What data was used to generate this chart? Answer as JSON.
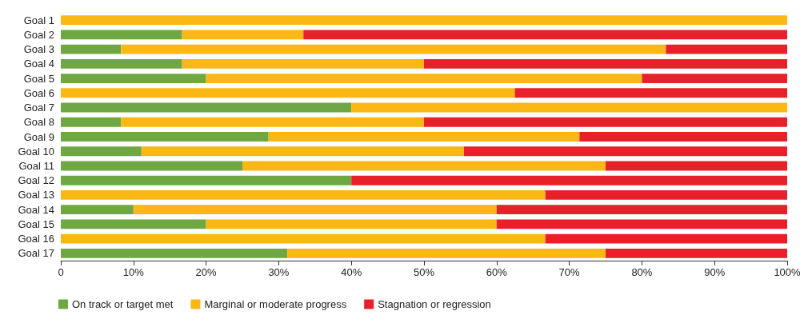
{
  "chart_data": {
    "type": "bar",
    "orientation": "horizontal",
    "stacked": true,
    "categories": [
      "Goal 1",
      "Goal 2",
      "Goal 3",
      "Goal 4",
      "Goal 5",
      "Goal 6",
      "Goal 7",
      "Goal 8",
      "Goal 9",
      "Goal 10",
      "Goal 11",
      "Goal 12",
      "Goal 13",
      "Goal 14",
      "Goal 15",
      "Goal 16",
      "Goal 17"
    ],
    "series": [
      {
        "name": "On track or target met",
        "color": "#6fa843",
        "values": [
          0,
          16.7,
          8.3,
          16.7,
          20,
          0,
          40,
          8.3,
          28.6,
          11.1,
          25,
          40,
          0,
          10,
          20,
          0,
          31.2
        ]
      },
      {
        "name": "Marginal or moderate progress",
        "color": "#fbb814",
        "values": [
          100,
          16.7,
          75,
          33.3,
          60,
          62.5,
          60,
          41.7,
          42.8,
          44.4,
          50,
          0,
          66.7,
          50,
          40,
          66.7,
          43.8
        ]
      },
      {
        "name": "Stagnation or regression",
        "color": "#e8202a",
        "values": [
          0,
          66.6,
          16.7,
          50,
          20,
          37.5,
          0,
          50,
          28.6,
          44.5,
          25,
          60,
          33.3,
          40,
          40,
          33.3,
          25
        ]
      }
    ],
    "xlim": [
      0,
      100
    ],
    "xticks": [
      0,
      {
        "value": 10,
        "label": "10%"
      },
      {
        "value": 20,
        "label": "20%"
      },
      {
        "value": 30,
        "label": "30%"
      },
      {
        "value": 40,
        "label": "40%"
      },
      {
        "value": 50,
        "label": "50%"
      },
      {
        "value": 60,
        "label": "60%"
      },
      {
        "value": 70,
        "label": "70%"
      },
      {
        "value": 80,
        "label": "80%"
      },
      {
        "value": 90,
        "label": "90%"
      },
      {
        "value": 100,
        "label": "100%"
      }
    ],
    "grid": false,
    "legend": "bottom left"
  }
}
